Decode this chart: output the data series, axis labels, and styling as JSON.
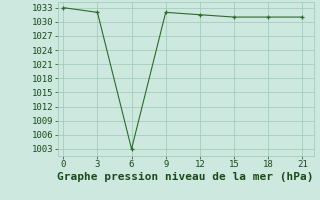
{
  "x": [
    0,
    3,
    6,
    9,
    12,
    15,
    18,
    21
  ],
  "y": [
    1033,
    1032,
    1003,
    1032,
    1031.5,
    1031,
    1031,
    1031
  ],
  "line_color": "#2d6a2d",
  "marker_color": "#2d6a2d",
  "bg_color": "#cce8df",
  "grid_color": "#9fc8b8",
  "xlabel": "Graphe pression niveau de la mer (hPa)",
  "xlabel_color": "#1a4a1a",
  "xticks": [
    0,
    3,
    6,
    9,
    12,
    15,
    18,
    21
  ],
  "yticks": [
    1003,
    1006,
    1009,
    1012,
    1015,
    1018,
    1021,
    1024,
    1027,
    1030,
    1033
  ],
  "ylim": [
    1001.5,
    1034.2
  ],
  "xlim": [
    -0.5,
    22.0
  ],
  "tick_color": "#1a4a1a",
  "tick_fontsize": 6.5,
  "xlabel_fontsize": 8.0
}
